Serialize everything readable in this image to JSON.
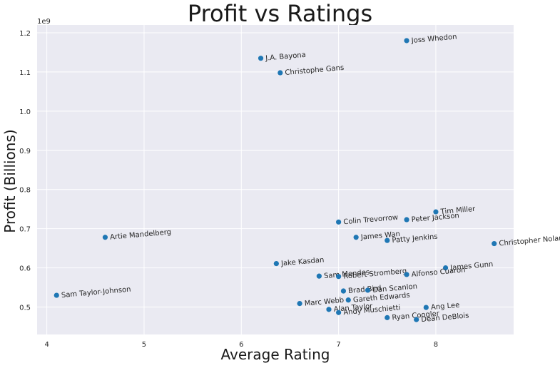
{
  "chart_data": {
    "type": "scatter",
    "title": "Profit vs Ratings",
    "xlabel": "Average Rating",
    "ylabel": "Profit (Billions)",
    "y_offset_text": "1e9",
    "xlim": [
      3.9,
      8.8
    ],
    "ylim": [
      430000000.0,
      1220000000.0
    ],
    "x_ticks": [
      4,
      5,
      6,
      7,
      8
    ],
    "x_tick_labels": [
      "4",
      "5",
      "6",
      "7",
      "8"
    ],
    "y_ticks": [
      500000000.0,
      600000000.0,
      700000000.0,
      800000000.0,
      900000000.0,
      1000000000.0,
      1100000000.0,
      1200000000.0
    ],
    "y_tick_labels": [
      "0.5",
      "0.6",
      "0.7",
      "0.8",
      "0.9",
      "1.0",
      "1.1",
      "1.2"
    ],
    "grid": true,
    "background": "#eaeaf2",
    "marker_color": "#1f77b4",
    "points": [
      {
        "label": "Joss Whedon",
        "x": 7.7,
        "y": 1180000000.0
      },
      {
        "label": "J.A. Bayona",
        "x": 6.2,
        "y": 1135000000.0
      },
      {
        "label": "Christophe Gans",
        "x": 6.4,
        "y": 1098000000.0
      },
      {
        "label": "Tim Miller",
        "x": 8.0,
        "y": 743000000.0
      },
      {
        "label": "Peter Jackson",
        "x": 7.7,
        "y": 723000000.0
      },
      {
        "label": "Colin Trevorrow",
        "x": 7.0,
        "y": 717000000.0
      },
      {
        "label": "Artie Mandelberg",
        "x": 4.6,
        "y": 678000000.0
      },
      {
        "label": "James Wan",
        "x": 7.18,
        "y": 678000000.0
      },
      {
        "label": "Patty Jenkins",
        "x": 7.5,
        "y": 670000000.0
      },
      {
        "label": "Christopher Nolan",
        "x": 8.6,
        "y": 662000000.0
      },
      {
        "label": "Jake Kasdan",
        "x": 6.36,
        "y": 611000000.0
      },
      {
        "label": "James Gunn",
        "x": 8.1,
        "y": 600000000.0
      },
      {
        "label": "Sam Mendes",
        "x": 6.8,
        "y": 579000000.0
      },
      {
        "label": "Robert Stromberg",
        "x": 7.0,
        "y": 578000000.0
      },
      {
        "label": "Alfonso Cuaron",
        "x": 7.7,
        "y": 583000000.0
      },
      {
        "label": "Sam Taylor-Johnson",
        "x": 4.1,
        "y": 530000000.0
      },
      {
        "label": "Brad Bird",
        "x": 7.05,
        "y": 541000000.0
      },
      {
        "label": "Dan Scanlon",
        "x": 7.3,
        "y": 543000000.0
      },
      {
        "label": "Gareth Edwards",
        "x": 7.1,
        "y": 518000000.0
      },
      {
        "label": "Marc Webb",
        "x": 6.6,
        "y": 509000000.0
      },
      {
        "label": "Alan Taylor",
        "x": 6.9,
        "y": 494000000.0
      },
      {
        "label": "Andy Muschietti",
        "x": 7.0,
        "y": 486000000.0
      },
      {
        "label": "Ang Lee",
        "x": 7.9,
        "y": 499000000.0
      },
      {
        "label": "Ryan Coogler",
        "x": 7.5,
        "y": 473000000.0
      },
      {
        "label": "Dean DeBlois",
        "x": 7.8,
        "y": 468000000.0
      }
    ]
  }
}
